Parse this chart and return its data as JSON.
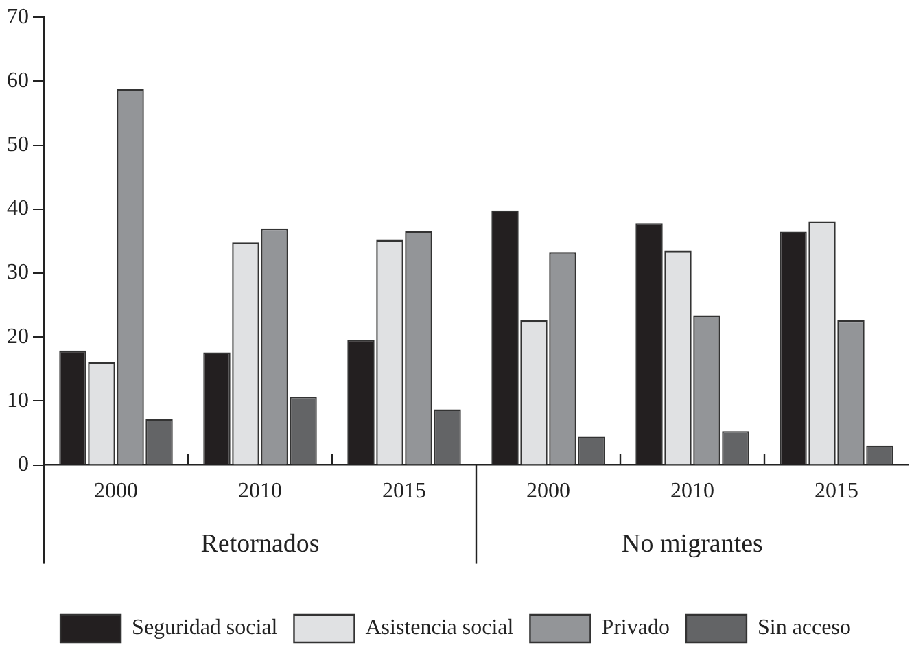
{
  "chart_data": {
    "type": "bar",
    "categories": [
      "2000",
      "2010",
      "2015",
      "2000",
      "2010",
      "2015"
    ],
    "annotations": [
      "Retornados",
      "No migrantes"
    ],
    "series": [
      {
        "name": "Seguridad social",
        "color": "#231f20",
        "values": [
          17.9,
          17.6,
          19.6,
          39.8,
          37.8,
          36.5
        ]
      },
      {
        "name": "Asistencia social",
        "color": "#e0e1e3",
        "values": [
          16.1,
          34.8,
          35.2,
          22.6,
          33.5,
          38.1
        ]
      },
      {
        "name": "Privado",
        "color": "#939598",
        "values": [
          58.8,
          37.0,
          36.6,
          33.3,
          23.4,
          22.6
        ]
      },
      {
        "name": "Sin acceso",
        "color": "#636466",
        "values": [
          7.2,
          10.7,
          8.7,
          4.4,
          5.3,
          3.0
        ]
      }
    ],
    "ylim": [
      0,
      70
    ],
    "yticks": [
      0,
      10,
      20,
      30,
      40,
      50,
      60,
      70
    ],
    "grid": false,
    "legend": "bottom"
  }
}
